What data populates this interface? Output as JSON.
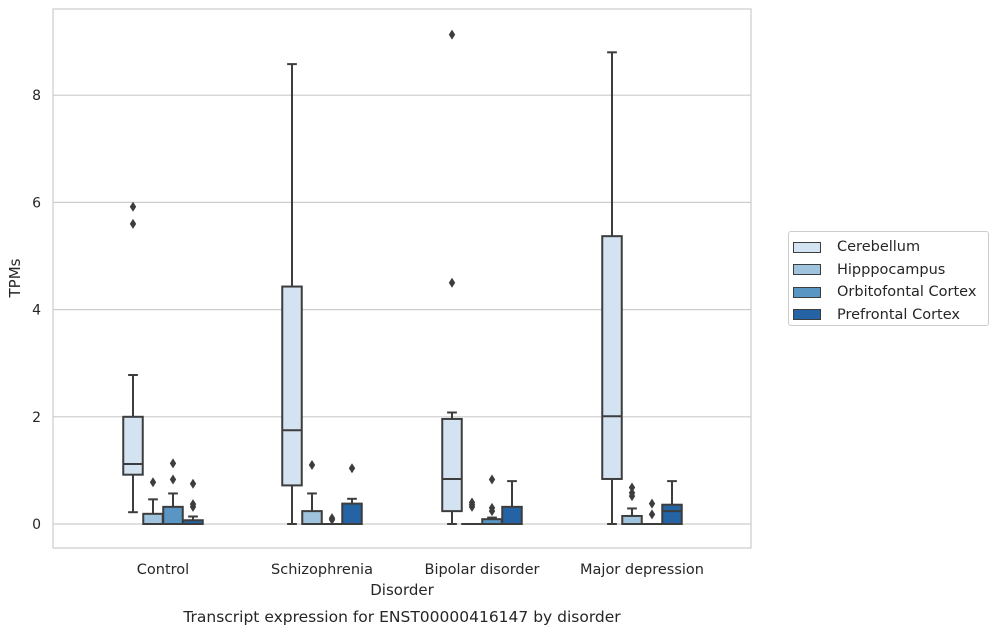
{
  "chart_data": {
    "type": "boxplot",
    "title": "Transcript expression for ENST00000416147 by disorder",
    "xlabel": "Disorder",
    "ylabel": "TPMs",
    "ylim": [
      -0.45,
      9.6
    ],
    "yticks": [
      0,
      2,
      4,
      6,
      8
    ],
    "grid": "horizontal",
    "legend_position": "right",
    "categories": [
      "Control",
      "Schizophrenia",
      "Bipolar disorder",
      "Major depression"
    ],
    "series": [
      {
        "name": "Cerebellum",
        "color": "#d4e3f1",
        "boxes": [
          {
            "q1": 0.92,
            "median": 1.12,
            "q3": 2.0,
            "whisker_low": 0.22,
            "whisker_high": 2.78,
            "outliers": [
              5.6,
              5.92
            ]
          },
          {
            "q1": 0.72,
            "median": 1.75,
            "q3": 4.43,
            "whisker_low": 0.0,
            "whisker_high": 8.58,
            "outliers": []
          },
          {
            "q1": 0.24,
            "median": 0.84,
            "q3": 1.96,
            "whisker_low": 0.0,
            "whisker_high": 2.08,
            "outliers": [
              4.5,
              9.13
            ]
          },
          {
            "q1": 0.84,
            "median": 2.01,
            "q3": 5.37,
            "whisker_low": 0.0,
            "whisker_high": 8.8,
            "outliers": []
          }
        ]
      },
      {
        "name": "Hipppocampus",
        "color": "#a0c4de",
        "boxes": [
          {
            "q1": 0.0,
            "median": 0.0,
            "q3": 0.19,
            "whisker_low": 0.0,
            "whisker_high": 0.46,
            "outliers": [
              0.78
            ]
          },
          {
            "q1": 0.0,
            "median": 0.0,
            "q3": 0.24,
            "whisker_low": 0.0,
            "whisker_high": 0.57,
            "outliers": [
              1.1
            ]
          },
          {
            "q1": 0.0,
            "median": 0.0,
            "q3": 0.0,
            "whisker_low": 0.0,
            "whisker_high": 0.0,
            "outliers": [
              0.32,
              0.36,
              0.4
            ]
          },
          {
            "q1": 0.0,
            "median": 0.0,
            "q3": 0.15,
            "whisker_low": 0.0,
            "whisker_high": 0.29,
            "outliers": [
              0.52,
              0.58,
              0.68
            ]
          }
        ]
      },
      {
        "name": "Orbitofontal Cortex",
        "color": "#5a96c4",
        "boxes": [
          {
            "q1": 0.0,
            "median": 0.0,
            "q3": 0.32,
            "whisker_low": 0.0,
            "whisker_high": 0.57,
            "outliers": [
              0.83,
              1.13
            ]
          },
          {
            "q1": 0.0,
            "median": 0.0,
            "q3": 0.0,
            "whisker_low": 0.0,
            "whisker_high": 0.0,
            "outliers": [
              0.08,
              0.11
            ]
          },
          {
            "q1": 0.0,
            "median": 0.0,
            "q3": 0.09,
            "whisker_low": 0.0,
            "whisker_high": 0.12,
            "outliers": [
              0.24,
              0.3,
              0.83
            ]
          },
          {
            "q1": 0.0,
            "median": 0.0,
            "q3": 0.0,
            "whisker_low": 0.0,
            "whisker_high": 0.0,
            "outliers": [
              0.18,
              0.38
            ]
          }
        ]
      },
      {
        "name": "Prefrontal Cortex",
        "color": "#2463a4",
        "boxes": [
          {
            "q1": 0.0,
            "median": 0.0,
            "q3": 0.07,
            "whisker_low": 0.0,
            "whisker_high": 0.14,
            "outliers": [
              0.32,
              0.37,
              0.75
            ]
          },
          {
            "q1": 0.0,
            "median": 0.0,
            "q3": 0.38,
            "whisker_low": 0.0,
            "whisker_high": 0.47,
            "outliers": [
              1.04
            ]
          },
          {
            "q1": 0.0,
            "median": 0.0,
            "q3": 0.32,
            "whisker_low": 0.0,
            "whisker_high": 0.8,
            "outliers": []
          },
          {
            "q1": 0.0,
            "median": 0.24,
            "q3": 0.36,
            "whisker_low": 0.0,
            "whisker_high": 0.8,
            "outliers": []
          }
        ]
      }
    ]
  }
}
